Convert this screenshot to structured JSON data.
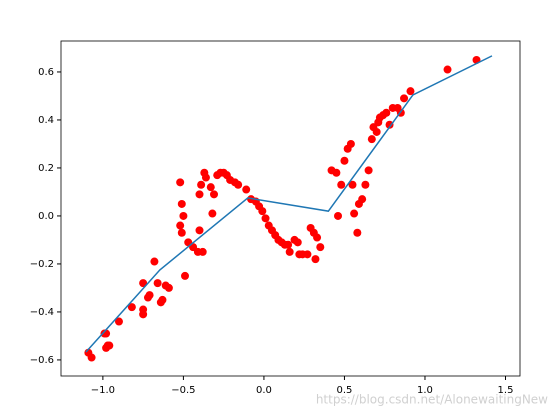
{
  "chart_data": {
    "type": "scatter",
    "series": [
      {
        "type": "scatter",
        "color": "#ff0000",
        "x": [
          -1.09,
          -1.07,
          -0.98,
          -0.97,
          -0.96,
          -0.99,
          -0.98,
          -0.9,
          -0.82,
          -0.75,
          -0.75,
          -0.75,
          -0.72,
          -0.71,
          -0.66,
          -0.68,
          -0.64,
          -0.63,
          -0.61,
          -0.59,
          -0.49,
          -0.52,
          -0.51,
          -0.5,
          -0.51,
          -0.52,
          -0.47,
          -0.44,
          -0.41,
          -0.38,
          -0.4,
          -0.4,
          -0.39,
          -0.37,
          -0.36,
          -0.33,
          -0.31,
          -0.32,
          -0.29,
          -0.27,
          -0.25,
          -0.23,
          -0.21,
          -0.18,
          -0.16,
          -0.11,
          -0.08,
          -0.05,
          -0.03,
          -0.01,
          0.01,
          0.03,
          0.05,
          0.07,
          0.09,
          0.11,
          0.13,
          0.15,
          0.16,
          0.19,
          0.21,
          0.22,
          0.24,
          0.27,
          0.29,
          0.31,
          0.32,
          0.33,
          0.35,
          0.42,
          0.45,
          0.46,
          0.48,
          0.5,
          0.52,
          0.54,
          0.55,
          0.56,
          0.58,
          0.59,
          0.61,
          0.63,
          0.65,
          0.67,
          0.68,
          0.7,
          0.71,
          0.72,
          0.74,
          0.76,
          0.78,
          0.8,
          0.83,
          0.85,
          0.87,
          0.91,
          1.14,
          1.32
        ],
        "values": [
          -0.57,
          -0.59,
          -0.55,
          -0.54,
          -0.54,
          -0.49,
          -0.49,
          -0.44,
          -0.38,
          -0.41,
          -0.39,
          -0.28,
          -0.34,
          -0.33,
          -0.28,
          -0.19,
          -0.36,
          -0.35,
          -0.29,
          -0.3,
          -0.25,
          -0.04,
          -0.07,
          0.0,
          0.05,
          0.14,
          -0.11,
          -0.13,
          -0.15,
          -0.15,
          -0.06,
          0.09,
          0.13,
          0.18,
          0.16,
          0.12,
          0.09,
          0.01,
          0.17,
          0.18,
          0.18,
          0.17,
          0.15,
          0.14,
          0.13,
          0.11,
          0.07,
          0.06,
          0.04,
          0.02,
          -0.01,
          -0.04,
          -0.06,
          -0.08,
          -0.1,
          -0.11,
          -0.12,
          -0.12,
          -0.15,
          -0.1,
          -0.11,
          -0.16,
          -0.16,
          -0.16,
          -0.05,
          -0.07,
          -0.18,
          -0.09,
          -0.13,
          0.19,
          0.18,
          0.0,
          0.13,
          0.23,
          0.28,
          0.3,
          0.13,
          0.01,
          -0.07,
          0.05,
          0.07,
          0.13,
          0.19,
          0.32,
          0.37,
          0.35,
          0.39,
          0.41,
          0.42,
          0.43,
          0.38,
          0.45,
          0.45,
          0.43,
          0.49,
          0.52,
          0.61,
          0.65
        ]
      },
      {
        "type": "line",
        "color": "#1f77b4",
        "x": [
          -1.105,
          -0.646,
          -0.1,
          0.4,
          0.925,
          1.416
        ],
        "values": [
          -0.567,
          -0.225,
          0.075,
          0.02,
          0.504,
          0.667
        ]
      }
    ],
    "xlim": [
      -1.26,
      1.59
    ],
    "xticks": [
      {
        "value": -1.0,
        "label": "−1.0"
      },
      {
        "value": -0.5,
        "label": "−0.5"
      },
      {
        "value": 0,
        "label": "0.0"
      },
      0.5,
      {
        "value": 1.0,
        "label": "1.0"
      },
      1.5
    ],
    "ylim": [
      -0.667,
      0.729
    ],
    "yticks": [
      {
        "value": -0.6,
        "label": "−0.6"
      },
      {
        "value": -0.4,
        "label": "−0.4"
      },
      {
        "value": -0.2,
        "label": "−0.2"
      },
      {
        "value": 0,
        "label": "0.0"
      },
      0.2,
      0.4,
      0.6
    ],
    "watermark": "https://blog.csdn.net/AlonewaitingNew"
  }
}
